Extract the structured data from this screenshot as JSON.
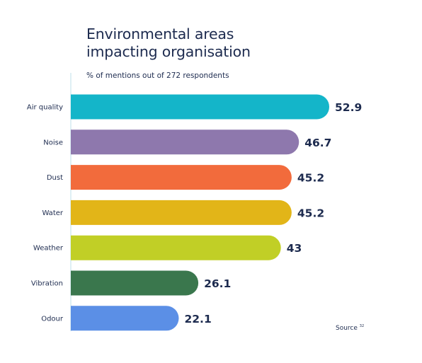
{
  "chart_data": {
    "type": "bar",
    "orientation": "horizontal",
    "title": "Environmental areas impacting organisation",
    "title_lines": [
      "Environmental areas",
      "impacting organisation"
    ],
    "subtitle": "% of mentions out of 272 respondents",
    "categories": [
      "Air quality",
      "Noise",
      "Dust",
      "Water",
      "Weather",
      "Vibration",
      "Odour"
    ],
    "values": [
      52.9,
      46.7,
      45.2,
      45.2,
      43,
      26.1,
      22.1
    ],
    "value_labels": [
      "52.9",
      "46.7",
      "45.2",
      "45.2",
      "43",
      "26.1",
      "22.1"
    ],
    "colors": [
      "#14b5c9",
      "#8e78ad",
      "#f26b3c",
      "#e2b518",
      "#c1cf26",
      "#3a774d",
      "#5b8fe6"
    ],
    "xlim": [
      0,
      60
    ],
    "grid": false,
    "legend": "none",
    "source_label": "Source",
    "source_ref": "32"
  }
}
